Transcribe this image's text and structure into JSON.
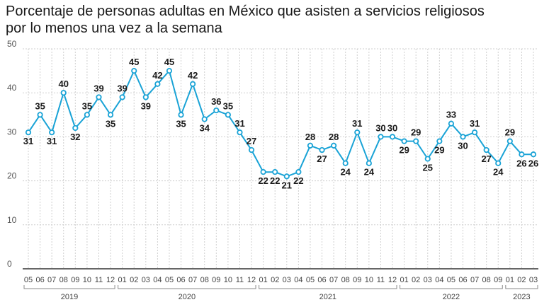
{
  "title": {
    "line1": "Porcentaje de personas adultas en México que asisten a servicios religiosos",
    "line2": "por lo menos una vez a la semana"
  },
  "colors": {
    "line": "#1aa3d6",
    "point_fill": "#ffffff",
    "grid": "#cfcfcf",
    "text": "#1a1a1a"
  },
  "chart_data": {
    "type": "line",
    "title": "Porcentaje de personas adultas en México que asisten a servicios religiosos por lo menos una vez a la semana",
    "xlabel": "",
    "ylabel": "",
    "ylim": [
      0,
      50
    ],
    "yticks": [
      "0",
      "10",
      "20",
      "30",
      "40",
      "50"
    ],
    "grid": true,
    "x": [
      "05",
      "06",
      "07",
      "08",
      "09",
      "10",
      "11",
      "12",
      "01",
      "02",
      "03",
      "04",
      "05",
      "06",
      "07",
      "08",
      "09",
      "10",
      "11",
      "12",
      "01",
      "02",
      "03",
      "04",
      "05",
      "06",
      "07",
      "08",
      "09",
      "10",
      "11",
      "12",
      "01",
      "02",
      "03",
      "04",
      "05",
      "06",
      "07",
      "08",
      "09",
      "01",
      "02",
      "03"
    ],
    "years": [
      {
        "label": "2019",
        "from": 0,
        "to": 7
      },
      {
        "label": "2020",
        "from": 8,
        "to": 19
      },
      {
        "label": "2021",
        "from": 20,
        "to": 31
      },
      {
        "label": "2022",
        "from": 32,
        "to": 40
      },
      {
        "label": "2023",
        "from": 41,
        "to": 43
      }
    ],
    "series": [
      {
        "values": [
          31,
          35,
          31,
          40,
          32,
          35,
          39,
          35,
          39,
          45,
          39,
          42,
          45,
          35,
          42,
          34,
          36,
          35,
          31,
          27,
          22,
          22,
          21,
          22,
          28,
          27,
          28,
          24,
          31,
          24,
          30,
          30,
          29,
          29,
          25,
          29,
          33,
          30,
          31,
          27,
          24,
          29,
          26,
          26
        ]
      }
    ],
    "label_positions": [
      "below",
      "above",
      "below",
      "above",
      "below",
      "above",
      "above",
      "below",
      "above",
      "above",
      "below",
      "above",
      "above",
      "below",
      "above",
      "below",
      "above",
      "above",
      "above",
      "above",
      "below",
      "below",
      "below",
      "below",
      "above",
      "below",
      "above",
      "below",
      "above",
      "below",
      "above",
      "above",
      "below",
      "above",
      "below",
      "below",
      "above",
      "below",
      "above",
      "below",
      "below",
      "above",
      "below",
      "below"
    ]
  }
}
